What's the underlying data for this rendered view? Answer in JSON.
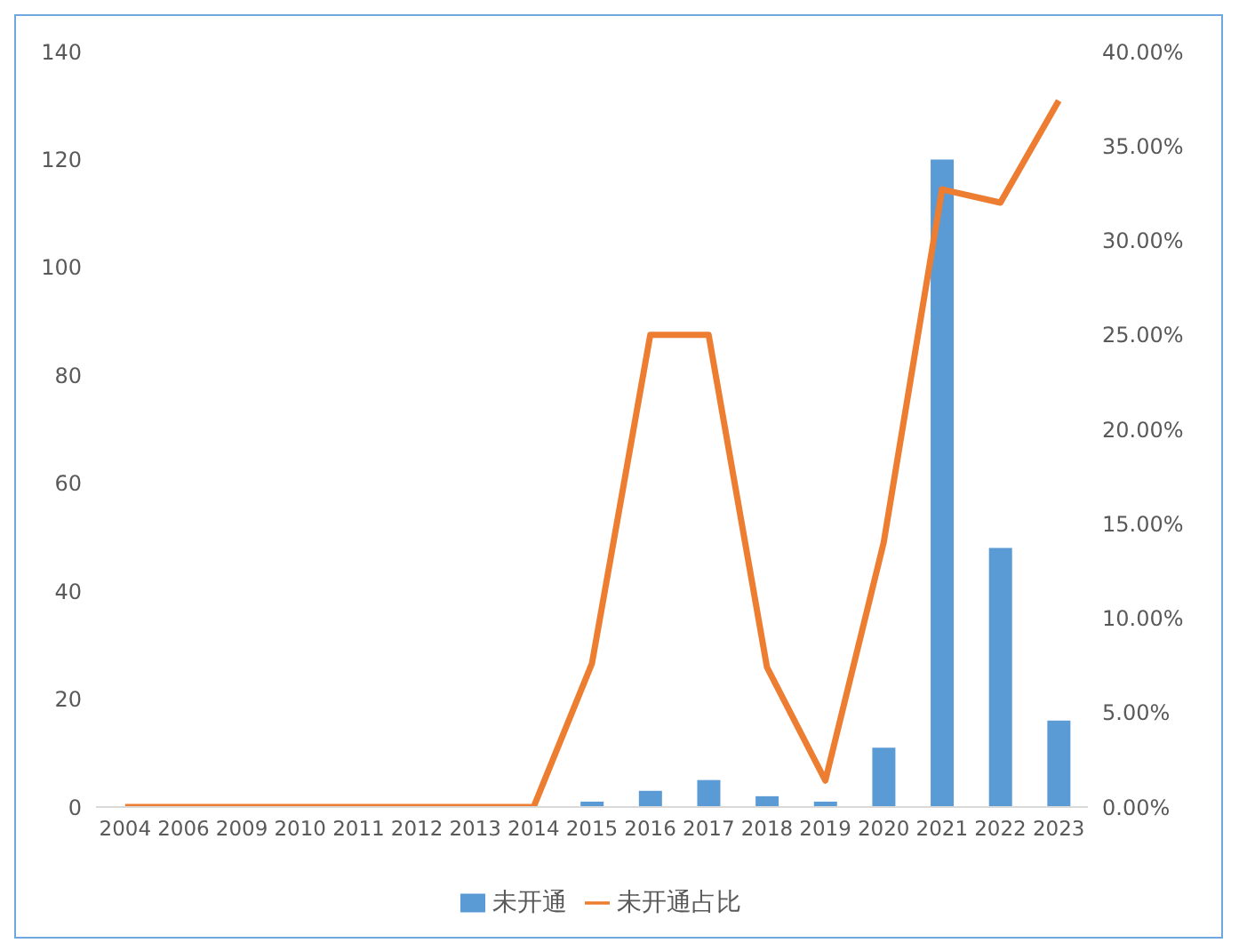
{
  "chart_data": {
    "type": "bar",
    "categories": [
      "2004",
      "2006",
      "2009",
      "2010",
      "2011",
      "2012",
      "2013",
      "2014",
      "2015",
      "2016",
      "2017",
      "2018",
      "2019",
      "2020",
      "2021",
      "2022",
      "2023"
    ],
    "series": [
      {
        "name": "未开通",
        "color": "#5b9bd5",
        "values": [
          0,
          0,
          0,
          0,
          0,
          0,
          0,
          0,
          1,
          3,
          5,
          2,
          1,
          11,
          120,
          48,
          16
        ]
      },
      {
        "name": "未开通占比",
        "type": "line",
        "axis": "y2",
        "color": "#ed7d31",
        "values": [
          0,
          0,
          0,
          0,
          0,
          0,
          0,
          0,
          7.6,
          25.0,
          25.0,
          7.4,
          1.4,
          14.0,
          32.7,
          32.0,
          37.4
        ]
      }
    ],
    "ylim": [
      0,
      140
    ],
    "yticks": [
      0,
      20,
      40,
      60,
      80,
      100,
      120,
      140
    ],
    "y2lim": [
      0,
      40
    ],
    "y2ticks": [
      {
        "value": 0,
        "label": "0.00%"
      },
      {
        "value": 5,
        "label": "5.00%"
      },
      {
        "value": 10,
        "label": "10.00%"
      },
      {
        "value": 15,
        "label": "15.00%"
      },
      {
        "value": 20,
        "label": "20.00%"
      },
      {
        "value": 25,
        "label": "25.00%"
      },
      {
        "value": 30,
        "label": "30.00%"
      },
      {
        "value": 35,
        "label": "35.00%"
      },
      {
        "value": 40,
        "label": "40.00%"
      }
    ],
    "legend": "bottom",
    "marker": "none"
  }
}
